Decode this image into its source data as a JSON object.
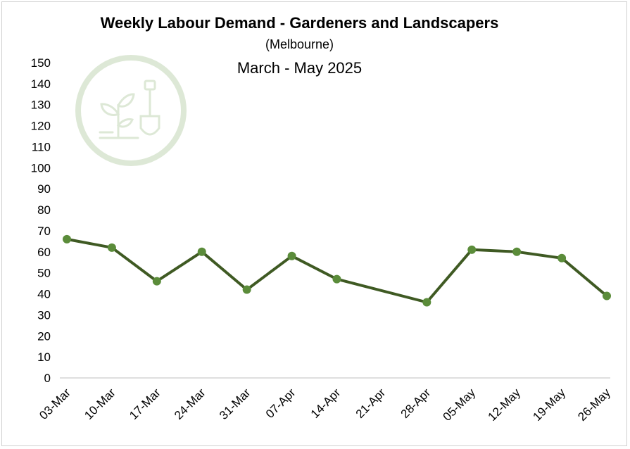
{
  "colors": {
    "line": "#3f5a23",
    "marker": "#5b8c3a",
    "watermark": "#dde8d6",
    "axis": "#bfbfbf"
  },
  "chart_data": {
    "type": "line",
    "title": "Weekly Labour Demand - Gardeners and Landscapers",
    "subtitle": "(Melbourne)",
    "subtitle2": "March - May 2025",
    "categories": [
      "03-Mar",
      "10-Mar",
      "17-Mar",
      "24-Mar",
      "31-Mar",
      "07-Apr",
      "14-Apr",
      "21-Apr",
      "28-Apr",
      "05-May",
      "12-May",
      "19-May",
      "26-May"
    ],
    "series": [
      {
        "values": [
          66,
          62,
          46,
          60,
          42,
          58,
          47,
          null,
          36,
          61,
          60,
          57,
          39
        ]
      }
    ],
    "ylim": [
      0,
      150
    ],
    "yticks": [
      0,
      10,
      20,
      30,
      40,
      50,
      60,
      70,
      80,
      90,
      100,
      110,
      120,
      130,
      140,
      150
    ],
    "grid": false,
    "legend": "none",
    "gap_handling": "connect",
    "watermark_icon": "plant-and-shovel-icon"
  }
}
